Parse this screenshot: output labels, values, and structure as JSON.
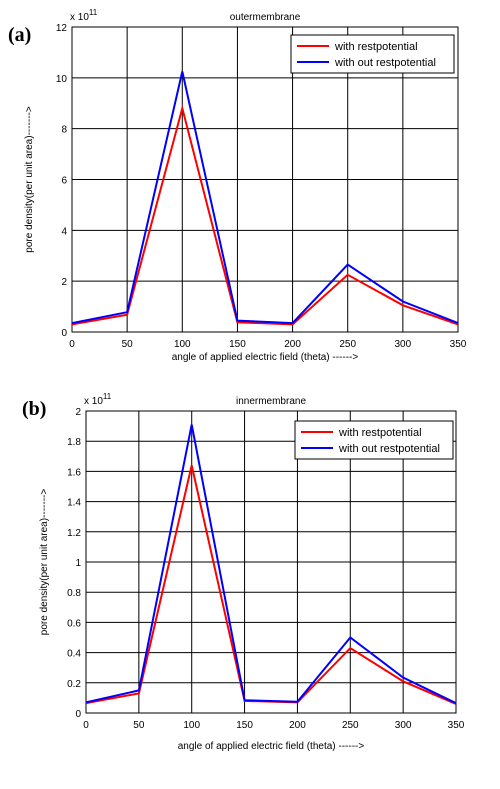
{
  "charts": [
    {
      "panel_label": "(a)",
      "chart_data": {
        "type": "line",
        "title": "outermembrane",
        "xlabel": "angle of applied electric field (theta) ------>",
        "ylabel": "pore density(per unit area)------->",
        "y_multiplier": "x 10",
        "y_exponent": "11",
        "x": [
          0,
          50,
          100,
          150,
          200,
          250,
          300,
          350
        ],
        "xlim": [
          0,
          350
        ],
        "ylim": [
          0,
          12
        ],
        "xticks": [
          0,
          50,
          100,
          150,
          200,
          250,
          300,
          350
        ],
        "yticks": [
          0,
          2,
          4,
          6,
          8,
          10,
          12
        ],
        "grid": true,
        "legend_position": "top-right",
        "series": [
          {
            "name": "with restpotential",
            "color": "#ff0000",
            "values": [
              0.3,
              0.68,
              8.8,
              0.38,
              0.3,
              2.25,
              1.05,
              0.3
            ]
          },
          {
            "name": "with  out restpotential",
            "color": "#0000ff",
            "values": [
              0.35,
              0.78,
              10.25,
              0.45,
              0.35,
              2.65,
              1.2,
              0.35
            ]
          }
        ]
      }
    },
    {
      "panel_label": "(b)",
      "chart_data": {
        "type": "line",
        "title": "innermembrane",
        "xlabel": "angle of applied electric field (theta) ------>",
        "ylabel": "pore density(per unit area)------->",
        "y_multiplier": "x 10",
        "y_exponent": "11",
        "x": [
          0,
          50,
          100,
          150,
          200,
          250,
          300,
          350
        ],
        "xlim": [
          0,
          350
        ],
        "ylim": [
          0,
          2
        ],
        "xticks": [
          0,
          50,
          100,
          150,
          200,
          250,
          300,
          350
        ],
        "yticks": [
          0,
          0.2,
          0.4,
          0.6,
          0.8,
          1,
          1.2,
          1.4,
          1.6,
          1.8,
          2
        ],
        "grid": true,
        "legend_position": "top-right",
        "series": [
          {
            "name": "with restpotential",
            "color": "#ff0000",
            "values": [
              0.065,
              0.13,
              1.64,
              0.08,
              0.07,
              0.43,
              0.21,
              0.06
            ]
          },
          {
            "name": "with  out restpotential",
            "color": "#0000ff",
            "values": [
              0.07,
              0.15,
              1.91,
              0.085,
              0.075,
              0.5,
              0.235,
              0.065
            ]
          }
        ]
      }
    }
  ]
}
